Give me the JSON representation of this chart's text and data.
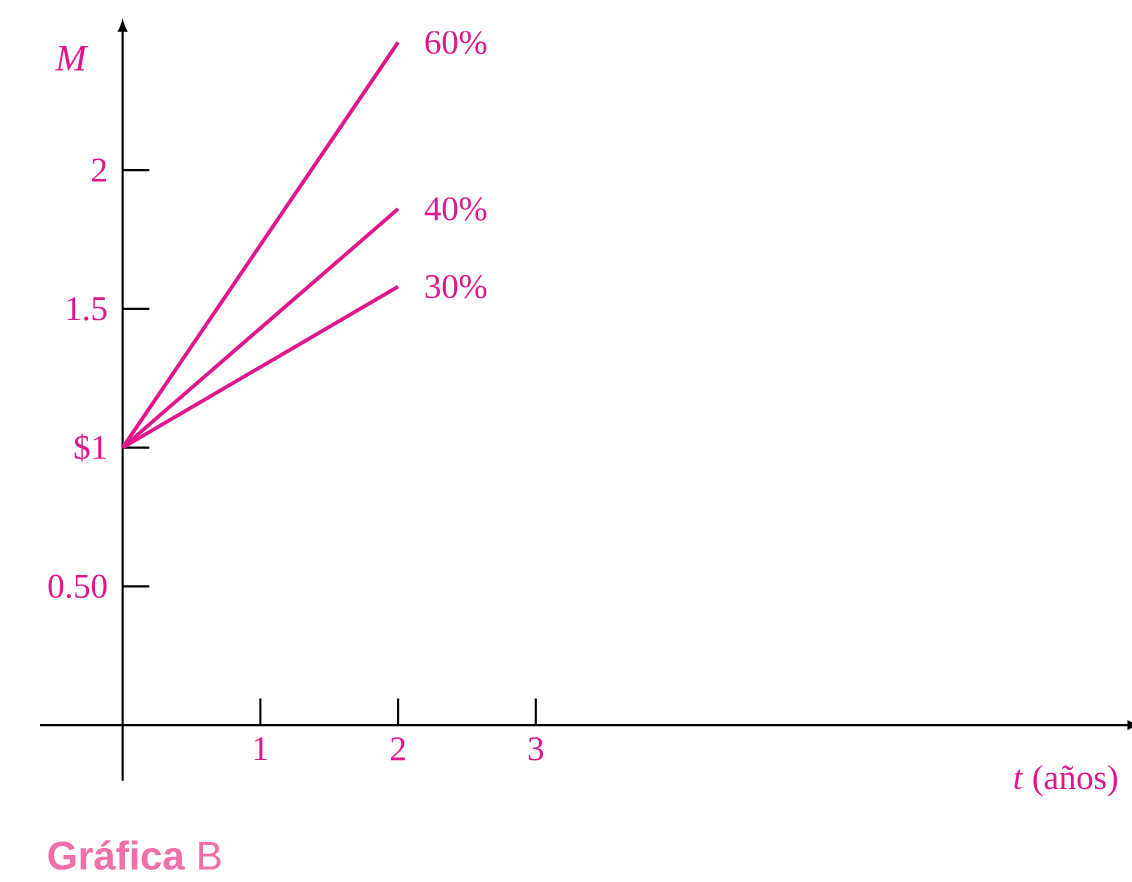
{
  "chart_data": {
    "type": "line",
    "title": "**Gráfica** B",
    "xlabel": "*t* (años)",
    "ylabel": "M",
    "x": [
      0,
      2
    ],
    "series": [
      {
        "name": "60%",
        "color": "#e0168c",
        "values": [
          1,
          2.46
        ]
      },
      {
        "name": "40%",
        "color": "#e0168c",
        "values": [
          1,
          1.86
        ]
      },
      {
        "name": "30%",
        "color": "#e0168c",
        "values": [
          1,
          1.58
        ]
      }
    ],
    "xlim": [
      -0.6,
      7.3
    ],
    "ylim": [
      -0.2,
      2.5
    ],
    "xticks": [
      1,
      2,
      3
    ],
    "yticks": [
      {
        "value": 0.5,
        "label": "0.50"
      },
      {
        "value": 1,
        "label": "$1"
      },
      1.5,
      2
    ],
    "grid": false,
    "legend": false,
    "marker": "none",
    "line_style": "solid"
  }
}
